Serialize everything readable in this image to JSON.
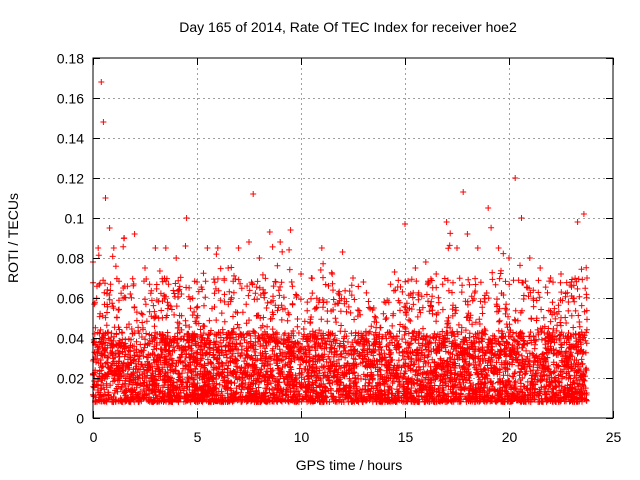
{
  "chart_data": {
    "type": "scatter",
    "title": "Day 165 of 2014, Rate Of TEC Index for receiver hoe2",
    "xlabel": "GPS time / hours",
    "ylabel": "ROTI / TECUs",
    "xlim": [
      0,
      25
    ],
    "ylim": [
      0,
      0.18
    ],
    "xticks": [
      0,
      5,
      10,
      15,
      20,
      25
    ],
    "xtick_labels": [
      "0",
      "5",
      "10",
      "15",
      "20",
      "25"
    ],
    "yticks": [
      0,
      0.02,
      0.04,
      0.06,
      0.08,
      0.1,
      0.12,
      0.14,
      0.16,
      0.18
    ],
    "ytick_labels": [
      "0",
      "0.02",
      "0.04",
      "0.06",
      "0.08",
      "0.1",
      "0.12",
      "0.14",
      "0.16",
      "0.18"
    ],
    "grid": true,
    "marker": "+",
    "color": "#ff0000",
    "data_range_hours": [
      0,
      23.75
    ],
    "envelope": {
      "x": [
        0,
        0.25,
        0.4,
        0.5,
        0.6,
        0.8,
        1.0,
        1.5,
        2.0,
        2.5,
        3.0,
        3.5,
        4.0,
        4.5,
        5.0,
        5.5,
        6.0,
        6.5,
        7.0,
        7.5,
        7.7,
        8.0,
        8.5,
        9.0,
        9.5,
        10.0,
        10.5,
        11.0,
        11.5,
        12.0,
        12.5,
        13.0,
        13.5,
        14.0,
        14.5,
        15.0,
        15.5,
        16.0,
        16.5,
        17.0,
        17.5,
        17.8,
        18.0,
        18.5,
        19.0,
        19.5,
        20.0,
        20.3,
        20.6,
        21.0,
        21.5,
        22.0,
        22.5,
        23.0,
        23.3,
        23.6,
        23.75
      ],
      "y_max": [
        0.078,
        0.085,
        0.168,
        0.148,
        0.11,
        0.095,
        0.085,
        0.09,
        0.092,
        0.075,
        0.085,
        0.085,
        0.08,
        0.1,
        0.068,
        0.085,
        0.085,
        0.075,
        0.085,
        0.088,
        0.112,
        0.08,
        0.093,
        0.088,
        0.094,
        0.072,
        0.07,
        0.085,
        0.072,
        0.083,
        0.07,
        0.068,
        0.055,
        0.058,
        0.073,
        0.097,
        0.075,
        0.078,
        0.072,
        0.098,
        0.085,
        0.113,
        0.092,
        0.085,
        0.105,
        0.085,
        0.08,
        0.12,
        0.1,
        0.08,
        0.075,
        0.07,
        0.072,
        0.068,
        0.098,
        0.102,
        0.07
      ],
      "y_min": 0.002
    }
  }
}
